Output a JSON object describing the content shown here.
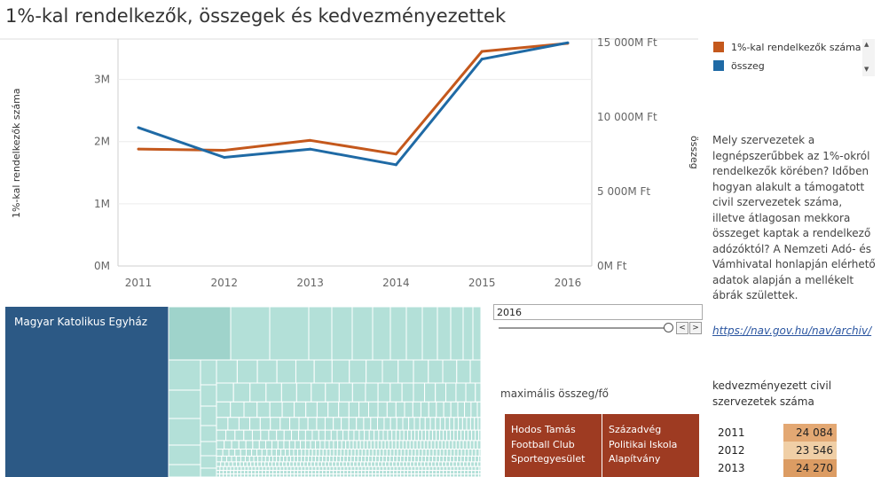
{
  "header": {
    "title": "1%-kal rendelkezők, összegek és kedvezményezettek"
  },
  "chart_data": {
    "type": "line",
    "x": [
      "2011",
      "2012",
      "2013",
      "2014",
      "2015",
      "2016"
    ],
    "series": [
      {
        "name": "1%-kal rendelkezők száma",
        "axis": "left",
        "color": "#c4581c",
        "values": [
          1880000,
          1860000,
          2020000,
          1800000,
          3450000,
          3580000
        ]
      },
      {
        "name": "összeg",
        "axis": "right",
        "color": "#1f6aa5",
        "values": [
          9300000000,
          7300000000,
          7850000000,
          6800000000,
          13900000000,
          15000000000
        ]
      }
    ],
    "ylabel_left": "1%-kal rendelkezők száma",
    "ylabel_right": "összeg",
    "ylim_left": [
      0,
      3650000
    ],
    "ylim_right": [
      0,
      15250000000
    ],
    "yticks_left": [
      {
        "value": 0,
        "label": "0M"
      },
      {
        "value": 1000000,
        "label": "1M"
      },
      {
        "value": 2000000,
        "label": "2M"
      },
      {
        "value": 3000000,
        "label": "3M"
      }
    ],
    "yticks_right": [
      {
        "value": 0,
        "label": "0M Ft"
      },
      {
        "value": 5000000000,
        "label": "5 000M Ft"
      },
      {
        "value": 10000000000,
        "label": "10 000M Ft"
      },
      {
        "value": 15000000000,
        "label": "15 000M Ft"
      }
    ],
    "grid": true,
    "legend": "top-right"
  },
  "legend": {
    "items": [
      {
        "label": "1%-kal rendelkezők száma",
        "color": "#c4581c"
      },
      {
        "label": "összeg",
        "color": "#1f6aa5"
      }
    ]
  },
  "description": "Mely szervezetek a legnépszerűbbek az 1%-okról rendelkezők körében? Időben hogyan alakult a támogatott civil szervezetek száma, illetve átlagosan mekkora összeget kaptak a rendelkező adózóktól? A  Nemzeti Adó- és Vámhivatal honlapján elérhető adatok alapján a mellékelt ábrák születtek.",
  "source_link": "https://nav.gov.hu/nav/archiv/",
  "filter": {
    "year_value": "2016",
    "prev": "<",
    "next": ">"
  },
  "treemap": {
    "top_label": "Magyar Katolikus Egyház",
    "top_color": "#2c5985",
    "rest_color": "#b3e0d8",
    "rest_highlight": "#9fd3cb"
  },
  "max_amount": {
    "title": "maximális összeg/fő",
    "items": [
      "Hodos Tamás Football Club Sportegyesület",
      "Századvég Politikai Iskola Alapítvány"
    ],
    "color": "#9e3b22"
  },
  "beneficiaries": {
    "title": "kedvezményezett civil szervezetek száma",
    "rows": [
      {
        "year": "2011",
        "value": "24 084",
        "color": "#e3a873"
      },
      {
        "year": "2012",
        "value": "23 546",
        "color": "#f0cfa6"
      },
      {
        "year": "2013",
        "value": "24 270",
        "color": "#dc9c63"
      }
    ]
  }
}
